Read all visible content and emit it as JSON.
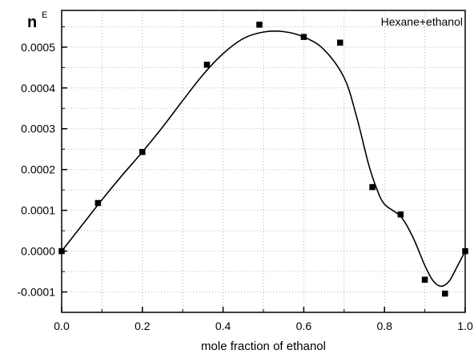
{
  "chart_data": {
    "type": "scatter",
    "title": "",
    "xlabel": "mole fraction of ethanol",
    "ylabel": "n",
    "ylabel_superscript": "E",
    "xlim": [
      0.0,
      1.0
    ],
    "ylim": [
      -0.00015,
      0.00059
    ],
    "grid": "dotted",
    "x_ticks": [
      0.0,
      0.2,
      0.4,
      0.6,
      0.8,
      1.0
    ],
    "x_tick_labels": [
      "0.0",
      "0.2",
      "0.4",
      "0.6",
      "0.8",
      "1.0"
    ],
    "y_ticks": [
      -0.0001,
      0.0,
      0.0001,
      0.0002,
      0.0003,
      0.0004,
      0.0005
    ],
    "y_tick_labels": [
      "-0.0001",
      "0.0000",
      "0.0001",
      "0.0002",
      "0.0003",
      "0.0004",
      "0.0005"
    ],
    "legend_position": "top-right",
    "series": [
      {
        "name": "Hexane+ethanol",
        "marker": "square",
        "color": "#000000",
        "points": [
          {
            "x": 0.0,
            "y": 0.0
          },
          {
            "x": 0.09,
            "y": 0.000118
          },
          {
            "x": 0.2,
            "y": 0.000243
          },
          {
            "x": 0.36,
            "y": 0.000457
          },
          {
            "x": 0.49,
            "y": 0.000555
          },
          {
            "x": 0.6,
            "y": 0.000525
          },
          {
            "x": 0.69,
            "y": 0.000511
          },
          {
            "x": 0.77,
            "y": 0.000157
          },
          {
            "x": 0.84,
            "y": 9e-05
          },
          {
            "x": 0.9,
            "y": -7e-05
          },
          {
            "x": 0.95,
            "y": -0.000104
          },
          {
            "x": 1.0,
            "y": 0.0
          }
        ]
      }
    ],
    "fit_curve": {
      "color": "#000000",
      "points": [
        {
          "x": 0.0,
          "y": 0.0
        },
        {
          "x": 0.05,
          "y": 6.3e-05
        },
        {
          "x": 0.1,
          "y": 0.000126
        },
        {
          "x": 0.15,
          "y": 0.000186
        },
        {
          "x": 0.2,
          "y": 0.000243
        },
        {
          "x": 0.25,
          "y": 0.000304
        },
        {
          "x": 0.3,
          "y": 0.000369
        },
        {
          "x": 0.35,
          "y": 0.000432
        },
        {
          "x": 0.4,
          "y": 0.000484
        },
        {
          "x": 0.45,
          "y": 0.000521
        },
        {
          "x": 0.5,
          "y": 0.000537
        },
        {
          "x": 0.55,
          "y": 0.000538
        },
        {
          "x": 0.6,
          "y": 0.000525
        },
        {
          "x": 0.65,
          "y": 0.000494
        },
        {
          "x": 0.7,
          "y": 0.000425
        },
        {
          "x": 0.73,
          "y": 0.000333
        },
        {
          "x": 0.76,
          "y": 0.000215
        },
        {
          "x": 0.78,
          "y": 0.000155
        },
        {
          "x": 0.8,
          "y": 0.000115
        },
        {
          "x": 0.84,
          "y": 8.5e-05
        },
        {
          "x": 0.87,
          "y": 3.5e-05
        },
        {
          "x": 0.9,
          "y": -3.5e-05
        },
        {
          "x": 0.92,
          "y": -7.2e-05
        },
        {
          "x": 0.94,
          "y": -8.6e-05
        },
        {
          "x": 0.96,
          "y": -7.4e-05
        },
        {
          "x": 0.98,
          "y": -3.8e-05
        },
        {
          "x": 1.0,
          "y": 0.0
        }
      ]
    }
  }
}
